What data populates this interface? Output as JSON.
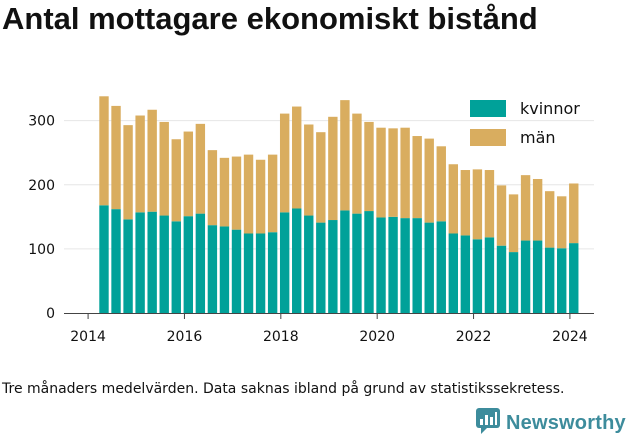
{
  "title": "Antal mottagare ekonomiskt bistånd",
  "caption": "Tre månaders medelvärden. Data saknas ibland på grund av statistikssekretess.",
  "brand": {
    "name": "Newsworthy",
    "icon": "newsworthy-logo-icon"
  },
  "colors": {
    "kvinnor": "#00a199",
    "man": "#d9ad5f",
    "axis": "#444444",
    "grid": "#e6e6e6"
  },
  "chart_data": {
    "type": "bar",
    "stacked": true,
    "title": "",
    "xlabel": "",
    "ylabel": "",
    "xlim": [
      2013.5,
      2024.5
    ],
    "ylim": [
      0,
      340
    ],
    "xticks": [
      2014,
      2016,
      2018,
      2020,
      2022,
      2024
    ],
    "yticks": [
      0,
      100,
      200,
      300
    ],
    "grid": "horizontal",
    "legend_position": "top-right",
    "x": [
      2014.33,
      2014.58,
      2014.83,
      2015.08,
      2015.33,
      2015.58,
      2015.83,
      2016.08,
      2016.33,
      2016.58,
      2016.83,
      2017.08,
      2017.33,
      2017.58,
      2017.83,
      2018.08,
      2018.33,
      2018.58,
      2018.83,
      2019.08,
      2019.33,
      2019.58,
      2019.83,
      2020.08,
      2020.33,
      2020.58,
      2020.83,
      2021.08,
      2021.33,
      2021.58,
      2021.83,
      2022.08,
      2022.33,
      2022.58,
      2022.83,
      2023.08,
      2023.33,
      2023.58,
      2023.83,
      2024.08
    ],
    "series": [
      {
        "name": "kvinnor",
        "values": [
          168,
          162,
          146,
          157,
          158,
          152,
          143,
          151,
          155,
          137,
          135,
          130,
          124,
          124,
          126,
          157,
          163,
          152,
          141,
          145,
          160,
          155,
          159,
          149,
          150,
          148,
          148,
          141,
          143,
          124,
          121,
          115,
          118,
          105,
          95,
          113,
          113,
          102,
          101,
          109
        ]
      },
      {
        "name": "män",
        "values": [
          170,
          161,
          147,
          151,
          159,
          146,
          128,
          132,
          140,
          117,
          107,
          114,
          123,
          115,
          121,
          154,
          159,
          142,
          141,
          161,
          172,
          156,
          139,
          140,
          138,
          141,
          128,
          131,
          117,
          108,
          102,
          109,
          105,
          94,
          90,
          102,
          96,
          88,
          81,
          93
        ]
      }
    ]
  }
}
